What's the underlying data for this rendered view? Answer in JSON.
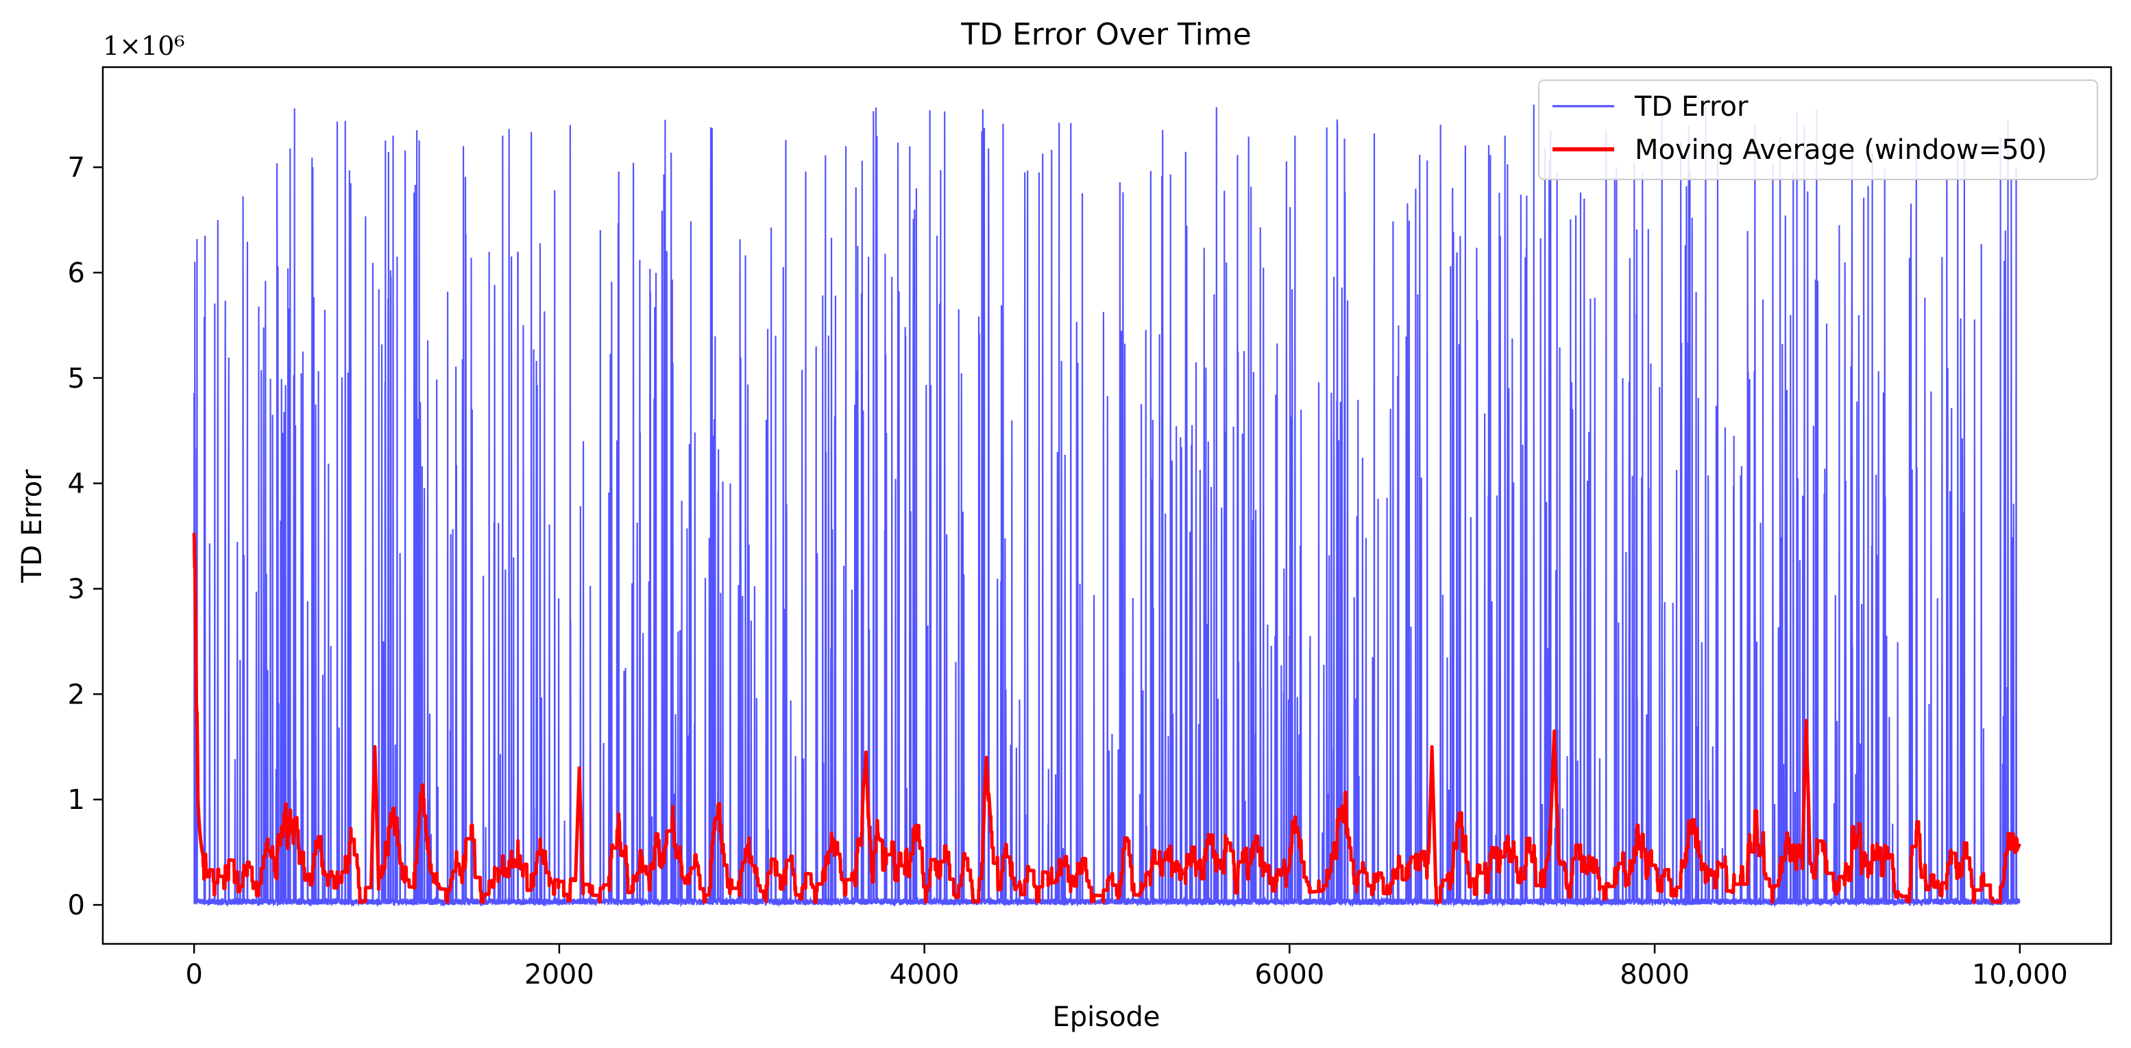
{
  "chart_data": {
    "type": "line",
    "title": "TD Error Over Time",
    "xlabel": "Episode",
    "ylabel": "TD Error",
    "y_offset_label": "1×10⁶",
    "xlim": [
      -500,
      10500
    ],
    "ylim": [
      -0.37,
      7.95
    ],
    "y_scale": 1000000,
    "xticks": [
      0,
      2000,
      4000,
      6000,
      8000,
      10000
    ],
    "xtick_labels": [
      "0",
      "2000",
      "4000",
      "6000",
      "8000",
      "10,000"
    ],
    "yticks": [
      0,
      1,
      2,
      3,
      4,
      5,
      6,
      7
    ],
    "ytick_labels": [
      "0",
      "1",
      "2",
      "3",
      "4",
      "5",
      "6",
      "7"
    ],
    "grid": false,
    "legend_position": "top-right",
    "n_episodes": 10000,
    "series": [
      {
        "name": "TD Error",
        "color": "#4a4aff",
        "description": "Per-episode TD error: mostly near 0 with frequent spikes up to about 7.6e6",
        "baseline_max": 0.06,
        "spike_probability": 0.07,
        "spike_range": [
          0.5,
          7.6
        ],
        "peak_points": [
          {
            "x": 60,
            "y": 6.35
          },
          {
            "x": 130,
            "y": 6.5
          },
          {
            "x": 650,
            "y": 7.0
          },
          {
            "x": 1090,
            "y": 7.3
          },
          {
            "x": 1220,
            "y": 7.35
          },
          {
            "x": 1690,
            "y": 7.3
          },
          {
            "x": 2060,
            "y": 7.4
          },
          {
            "x": 2580,
            "y": 7.45
          },
          {
            "x": 2830,
            "y": 7.38
          },
          {
            "x": 3570,
            "y": 7.2
          },
          {
            "x": 4320,
            "y": 7.55
          },
          {
            "x": 5600,
            "y": 7.57
          },
          {
            "x": 6030,
            "y": 7.3
          },
          {
            "x": 7180,
            "y": 7.3
          },
          {
            "x": 7430,
            "y": 7.35
          },
          {
            "x": 8820,
            "y": 7.4
          },
          {
            "x": 9660,
            "y": 7.1
          },
          {
            "x": 9980,
            "y": 7.0
          }
        ]
      },
      {
        "name": "Moving Average (window=50)",
        "color": "#ff0000",
        "window": 50,
        "start_value": 3.53,
        "end_value": 0.58,
        "typical_range": [
          0.05,
          1.7
        ],
        "notable_points": [
          {
            "x": 0,
            "y": 3.53
          },
          {
            "x": 990,
            "y": 1.5
          },
          {
            "x": 2110,
            "y": 1.3
          },
          {
            "x": 3680,
            "y": 1.45
          },
          {
            "x": 4340,
            "y": 1.4
          },
          {
            "x": 6780,
            "y": 1.5
          },
          {
            "x": 7450,
            "y": 1.65
          },
          {
            "x": 8830,
            "y": 1.75
          },
          {
            "x": 10000,
            "y": 0.58
          }
        ]
      }
    ]
  }
}
